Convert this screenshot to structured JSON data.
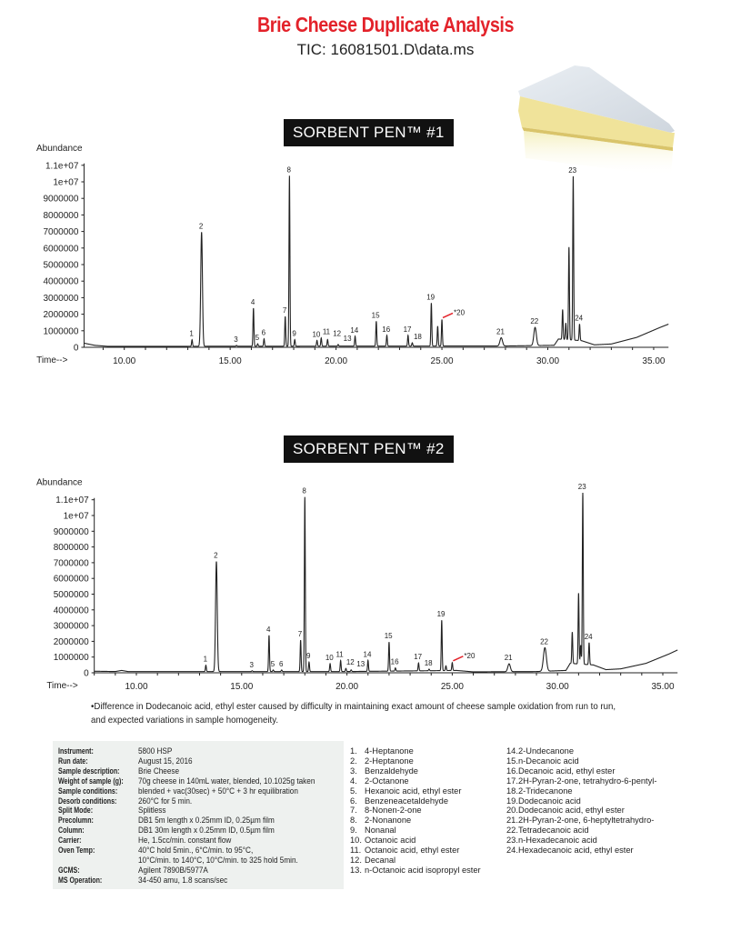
{
  "title": "Brie Cheese Duplicate Analysis",
  "subtitle": "TIC: 16081501.D\\data.ms",
  "banners": [
    "SORBENT PEN™ #1",
    "SORBENT PEN™ #2"
  ],
  "colors": {
    "title": "#e3222a",
    "trace": "#222222",
    "annotation_line": "#e3222a",
    "banner_bg": "#111111",
    "info_bg": "#eef1ef"
  },
  "chart_data": [
    {
      "type": "line",
      "title": "SORBENT PEN™ #1",
      "xlabel": "Time-->",
      "ylabel": "Abundance",
      "xlim": [
        8.1,
        35.7
      ],
      "ylim": [
        0,
        11000000
      ],
      "x_ticks": [
        "10.00",
        "15.00",
        "20.00",
        "25.00",
        "30.00",
        "35.00"
      ],
      "y_ticks": [
        "0",
        "1000000",
        "2000000",
        "3000000",
        "4000000",
        "5000000",
        "6000000",
        "7000000",
        "8000000",
        "9000000",
        "1e+07",
        "1.1e+07"
      ],
      "grid": false,
      "baseline": [
        [
          8.1,
          250000
        ],
        [
          8.6,
          120000
        ],
        [
          9.2,
          60000
        ],
        [
          12,
          60000
        ],
        [
          20,
          70000
        ],
        [
          28,
          80000
        ],
        [
          30.3,
          120000
        ],
        [
          30.5,
          500000
        ],
        [
          31.6,
          400000
        ],
        [
          32.2,
          150000
        ],
        [
          33,
          200000
        ],
        [
          34.2,
          600000
        ],
        [
          35.3,
          1200000
        ],
        [
          35.7,
          1400000
        ]
      ],
      "peaks": [
        {
          "label": "1",
          "time": 13.2,
          "abundance": 400000
        },
        {
          "label": "2",
          "time": 13.65,
          "abundance": 6900000,
          "width": 0.04
        },
        {
          "label": "3",
          "time": 15.3,
          "abundance": 50000
        },
        {
          "label": "4",
          "time": 16.1,
          "abundance": 2300000
        },
        {
          "label": "5",
          "time": 16.3,
          "abundance": 150000
        },
        {
          "label": "6",
          "time": 16.6,
          "abundance": 450000
        },
        {
          "label": "7",
          "time": 17.6,
          "abundance": 1800000
        },
        {
          "label": "8",
          "time": 17.8,
          "abundance": 10300000
        },
        {
          "label": "9",
          "time": 18.05,
          "abundance": 400000
        },
        {
          "label": "10",
          "time": 19.1,
          "abundance": 350000
        },
        {
          "label": "11",
          "time": 19.3,
          "abundance": 500000
        },
        {
          "label": "12",
          "time": 19.6,
          "abundance": 400000
        },
        {
          "label": "13",
          "time": 20.1,
          "abundance": 100000
        },
        {
          "label": "14",
          "time": 20.9,
          "abundance": 600000
        },
        {
          "label": "15",
          "time": 21.9,
          "abundance": 1500000
        },
        {
          "label": "16",
          "time": 22.4,
          "abundance": 650000
        },
        {
          "label": "17",
          "time": 23.4,
          "abundance": 650000
        },
        {
          "label": "18",
          "time": 23.6,
          "abundance": 200000
        },
        {
          "label": "19",
          "time": 24.5,
          "abundance": 2600000
        },
        {
          "label": "",
          "time": 24.8,
          "abundance": 1200000
        },
        {
          "label": "*20",
          "time": 25.0,
          "abundance": 1600000,
          "annotated": true
        },
        {
          "label": "21",
          "time": 27.8,
          "abundance": 500000,
          "width": 0.06
        },
        {
          "label": "22",
          "time": 29.4,
          "abundance": 1100000,
          "width": 0.06
        },
        {
          "label": "",
          "time": 30.7,
          "abundance": 1800000
        },
        {
          "label": "",
          "time": 30.85,
          "abundance": 1000000
        },
        {
          "label": "",
          "time": 31.0,
          "abundance": 5600000
        },
        {
          "label": "23",
          "time": 31.2,
          "abundance": 9900000
        },
        {
          "label": "24",
          "time": 31.5,
          "abundance": 1000000
        }
      ]
    },
    {
      "type": "line",
      "title": "SORBENT PEN™ #2",
      "xlabel": "Time-->",
      "ylabel": "Abundance",
      "xlim": [
        8.0,
        35.7
      ],
      "ylim": [
        0,
        11000000
      ],
      "x_ticks": [
        "10.00",
        "15.00",
        "20.00",
        "25.00",
        "30.00",
        "35.00"
      ],
      "y_ticks": [
        "0",
        "1000000",
        "2000000",
        "3000000",
        "4000000",
        "5000000",
        "6000000",
        "7000000",
        "8000000",
        "9000000",
        "1e+07",
        "1.1e+07"
      ],
      "grid": false,
      "baseline": [
        [
          8.0,
          100000
        ],
        [
          9.0,
          80000
        ],
        [
          9.3,
          150000
        ],
        [
          9.6,
          80000
        ],
        [
          20,
          80000
        ],
        [
          25.2,
          150000
        ],
        [
          26,
          60000
        ],
        [
          29,
          80000
        ],
        [
          30.4,
          150000
        ],
        [
          30.6,
          600000
        ],
        [
          31.7,
          500000
        ],
        [
          32.3,
          200000
        ],
        [
          33,
          250000
        ],
        [
          34.2,
          600000
        ],
        [
          35.3,
          1200000
        ],
        [
          35.7,
          1450000
        ]
      ],
      "peaks": [
        {
          "label": "1",
          "time": 13.3,
          "abundance": 400000
        },
        {
          "label": "2",
          "time": 13.8,
          "abundance": 7000000,
          "width": 0.04
        },
        {
          "label": "3",
          "time": 15.5,
          "abundance": 50000
        },
        {
          "label": "4",
          "time": 16.3,
          "abundance": 2300000
        },
        {
          "label": "5",
          "time": 16.5,
          "abundance": 100000
        },
        {
          "label": "6",
          "time": 16.9,
          "abundance": 100000
        },
        {
          "label": "7",
          "time": 17.8,
          "abundance": 2000000
        },
        {
          "label": "8",
          "time": 18.0,
          "abundance": 11100000
        },
        {
          "label": "9",
          "time": 18.2,
          "abundance": 600000
        },
        {
          "label": "10",
          "time": 19.2,
          "abundance": 500000
        },
        {
          "label": "11",
          "time": 19.7,
          "abundance": 700000
        },
        {
          "label": "12",
          "time": 19.95,
          "abundance": 200000
        },
        {
          "label": "13",
          "time": 20.2,
          "abundance": 100000
        },
        {
          "label": "14",
          "time": 21.0,
          "abundance": 700000
        },
        {
          "label": "15",
          "time": 22.0,
          "abundance": 1850000
        },
        {
          "label": "16",
          "time": 22.3,
          "abundance": 200000
        },
        {
          "label": "17",
          "time": 23.4,
          "abundance": 500000
        },
        {
          "label": "18",
          "time": 23.9,
          "abundance": 100000
        },
        {
          "label": "19",
          "time": 24.5,
          "abundance": 3200000
        },
        {
          "label": "",
          "time": 24.7,
          "abundance": 300000
        },
        {
          "label": "*20",
          "time": 25.0,
          "abundance": 500000,
          "annotated": true
        },
        {
          "label": "21",
          "time": 27.7,
          "abundance": 500000,
          "width": 0.06
        },
        {
          "label": "22",
          "time": 29.4,
          "abundance": 1500000,
          "width": 0.07
        },
        {
          "label": "",
          "time": 30.7,
          "abundance": 2000000
        },
        {
          "label": "",
          "time": 31.0,
          "abundance": 4500000
        },
        {
          "label": "",
          "time": 31.1,
          "abundance": 1200000
        },
        {
          "label": "23",
          "time": 31.2,
          "abundance": 10900000
        },
        {
          "label": "24",
          "time": 31.5,
          "abundance": 1400000
        }
      ]
    }
  ],
  "footnote": [
    "•Difference in Dodecanoic acid, ethyl ester caused by difficulty in maintaining exact amount of cheese sample oxidation from run to run,",
    "and expected variations in sample homogeneity."
  ],
  "instrument_info": [
    {
      "label": "Instrument:",
      "value": "5800 HSP"
    },
    {
      "label": "Run date:",
      "value": "August 15, 2016"
    },
    {
      "label": "Sample description:",
      "value": "Brie Cheese"
    },
    {
      "label": "Weight of sample (g):",
      "value": "70g cheese in 140mL water, blended, 10.1025g taken"
    },
    {
      "label": "Sample conditions:",
      "value": "blended + vac(30sec) + 50°C + 3 hr equilibration"
    },
    {
      "label": "Desorb conditions:",
      "value": "260°C for 5 min."
    },
    {
      "label": "Split Mode:",
      "value": "Splitless"
    },
    {
      "label": "Precolumn:",
      "value": "DB1 5m length x 0.25mm ID, 0.25µm film"
    },
    {
      "label": "Column:",
      "value": "DB1 30m length x 0.25mm ID, 0.5µm film"
    },
    {
      "label": "Carrier:",
      "value": "He, 1.5cc/min. constant flow"
    },
    {
      "label": "Oven Temp:",
      "value": "40°C hold 5min., 6°C/min. to 95°C,"
    },
    {
      "label": "",
      "value": "10°C/min. to 140°C, 10°C/min. to 325 hold 5min."
    },
    {
      "label": "GCMS:",
      "value": "Agilent 7890B/5977A"
    },
    {
      "label": "MS Operation:",
      "value": "34-450 amu, 1.8 scans/sec"
    }
  ],
  "compounds": [
    {
      "n": "1.",
      "name": "4-Heptanone"
    },
    {
      "n": "2.",
      "name": "2-Heptanone"
    },
    {
      "n": "3.",
      "name": "Benzaldehyde"
    },
    {
      "n": "4.",
      "name": "2-Octanone"
    },
    {
      "n": "5.",
      "name": "Hexanoic acid, ethyl ester"
    },
    {
      "n": "6.",
      "name": "Benzeneacetaldehyde"
    },
    {
      "n": "7.",
      "name": "8-Nonen-2-one"
    },
    {
      "n": "8.",
      "name": "2-Nonanone"
    },
    {
      "n": "9.",
      "name": "Nonanal"
    },
    {
      "n": "10.",
      "name": "Octanoic acid"
    },
    {
      "n": "11.",
      "name": "Octanoic acid, ethyl ester"
    },
    {
      "n": "12.",
      "name": "Decanal"
    },
    {
      "n": "13.",
      "name": "n-Octanoic acid isopropyl ester"
    },
    {
      "n": "14.",
      "name": "2-Undecanone"
    },
    {
      "n": "15.",
      "name": "n-Decanoic acid"
    },
    {
      "n": "16.",
      "name": "Decanoic acid, ethyl ester"
    },
    {
      "n": "17.",
      "name": "2H-Pyran-2-one, tetrahydro-6-pentyl-"
    },
    {
      "n": "18.",
      "name": "2-Tridecanone"
    },
    {
      "n": "19.",
      "name": "Dodecanoic acid"
    },
    {
      "n": "20.",
      "name": "Dodecanoic acid, ethyl ester"
    },
    {
      "n": "21.",
      "name": "2H-Pyran-2-one, 6-heptyltetrahydro-"
    },
    {
      "n": "22.",
      "name": "Tetradecanoic acid"
    },
    {
      "n": "23.",
      "name": "n-Hexadecanoic acid"
    },
    {
      "n": "24.",
      "name": "Hexadecanoic acid, ethyl ester"
    }
  ],
  "image": {
    "icon": "brie-cheese-wedge-photo"
  }
}
